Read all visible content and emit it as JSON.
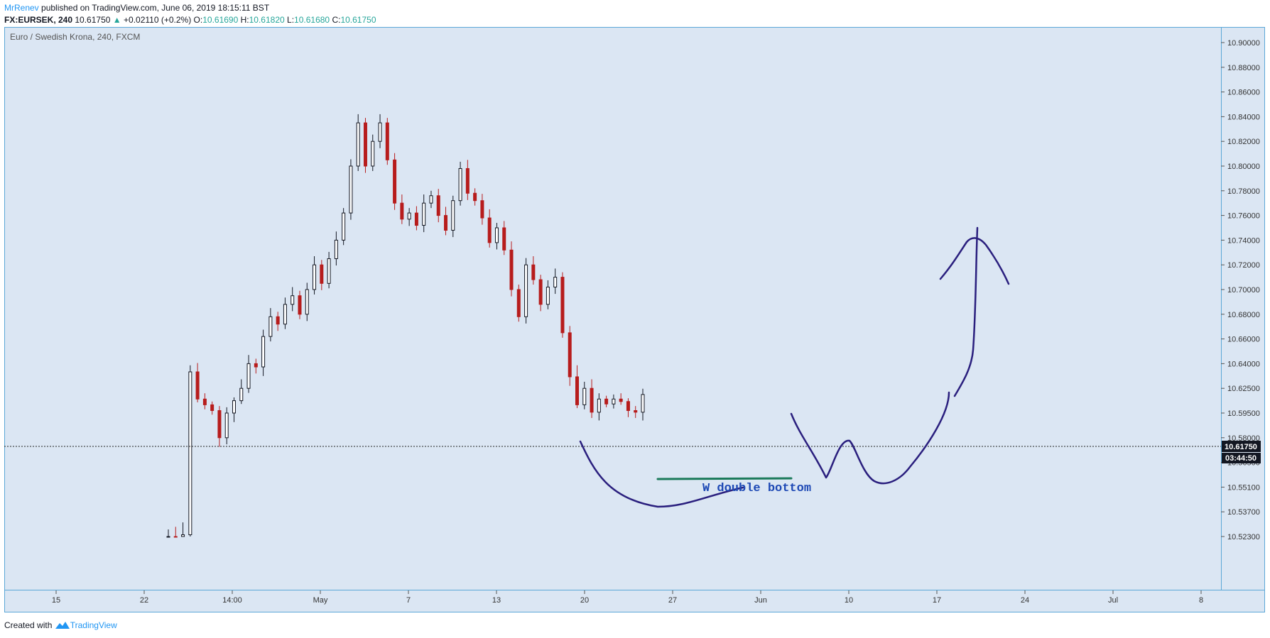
{
  "header": {
    "author": "MrRenev",
    "published": "published on TradingView.com, June 06, 2019 18:15:11 BST",
    "symbol": "FX:EURSEK, 240",
    "last": "10.61750",
    "change": "+0.02110 (+0.2%)",
    "open_label": "O:",
    "open": "10.61690",
    "high_label": "H:",
    "high": "10.61820",
    "low_label": "L:",
    "low": "10.61680",
    "close_label": "C:",
    "close": "10.61750"
  },
  "footer": {
    "created_with": "Created with",
    "brand": "TradingView"
  },
  "colors": {
    "background": "#dbe6f3",
    "up": "#131722",
    "down": "#b71c1c",
    "annotation": "#2a1f7e",
    "support": "#1b7a5a",
    "text_blue": "#1e49b5"
  },
  "chart_data": {
    "type": "candlestick",
    "title": "Euro / Swedish Krona, 240, FXCM",
    "y_ticks": [
      "10.90000",
      "10.88000",
      "10.86000",
      "10.84000",
      "10.82000",
      "10.80000",
      "10.78000",
      "10.76000",
      "10.74000",
      "10.72000",
      "10.70000",
      "10.68000",
      "10.66000",
      "10.64000",
      "10.62500",
      "10.59500",
      "10.58000",
      "10.56500",
      "10.55100",
      "10.53700",
      "10.52300"
    ],
    "x_ticks": [
      "15",
      "22",
      "14:00",
      "May",
      "7",
      "13",
      "20",
      "27",
      "Jun",
      "10",
      "17",
      "24",
      "Jul",
      "8",
      "15"
    ],
    "last_price": "10.61750",
    "countdown": "03:44:50",
    "annotation_text": "W double bottom",
    "closes": [
      10.523,
      10.522,
      10.524,
      10.635,
      10.612,
      10.605,
      10.598,
      10.58,
      10.595,
      10.61,
      10.625,
      10.64,
      10.638,
      10.662,
      10.678,
      10.672,
      10.688,
      10.695,
      10.68,
      10.7,
      10.72,
      10.705,
      10.725,
      10.74,
      10.762,
      10.8,
      10.835,
      10.8,
      10.82,
      10.835,
      10.805,
      10.77,
      10.757,
      10.762,
      10.752,
      10.77,
      10.776,
      10.76,
      10.748,
      10.772,
      10.798,
      10.778,
      10.772,
      10.758,
      10.738,
      10.75,
      10.732,
      10.7,
      10.678,
      10.72,
      10.708,
      10.688,
      10.702,
      10.71,
      10.665,
      10.632,
      10.605,
      10.625,
      10.596,
      10.612,
      10.606,
      10.612,
      10.609,
      10.598,
      10.596,
      10.6175
    ]
  }
}
